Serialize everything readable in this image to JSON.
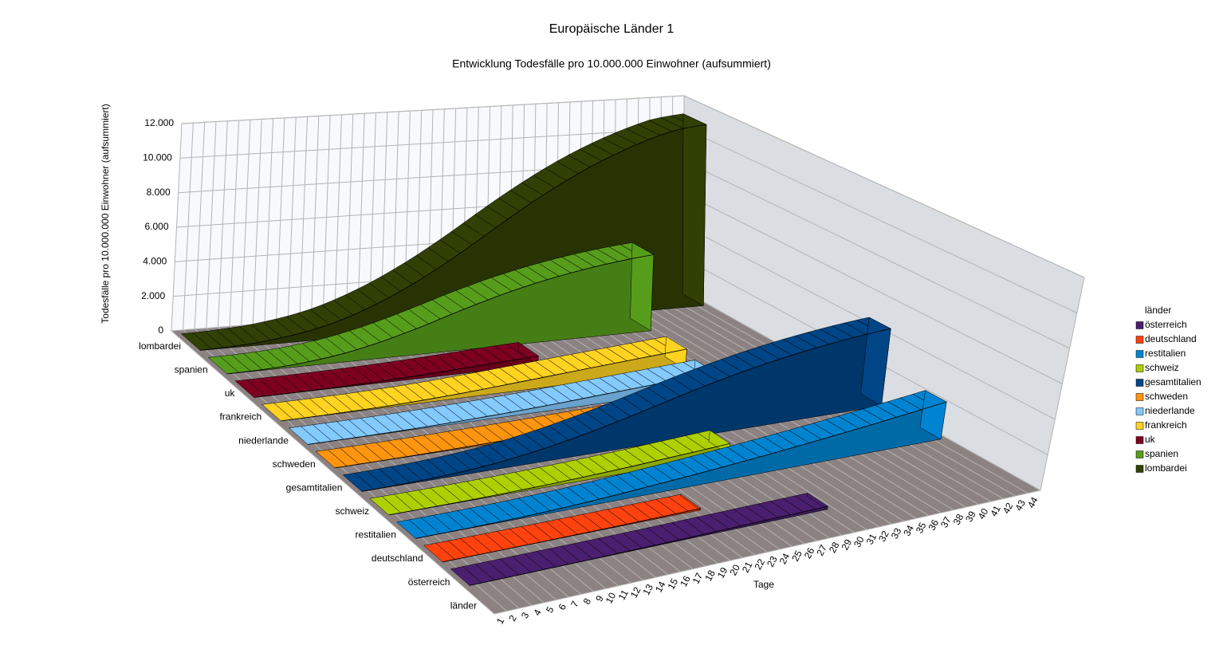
{
  "chart_data": {
    "type": "ribbon3d",
    "title": "Europäische Länder 1",
    "subtitle": "Entwicklung Todesfälle pro 10.000.000 Einwohner (aufsummiert)",
    "y_axis_label": "Todesfälle pro 10.000.000 Einwohner (aufsummiert)",
    "x_axis_label": "Tage",
    "z_axis_label": "länder",
    "legend_title": "länder",
    "legend_position": "right",
    "grid": true,
    "x": [
      1,
      2,
      3,
      4,
      5,
      6,
      7,
      8,
      9,
      10,
      11,
      12,
      13,
      14,
      15,
      16,
      17,
      18,
      19,
      20,
      21,
      22,
      23,
      24,
      25,
      26,
      27,
      28,
      29,
      30,
      31,
      32,
      33,
      34,
      35,
      36,
      37,
      38,
      39,
      40,
      41,
      42,
      43,
      44
    ],
    "xlim": [
      0.5,
      44.5
    ],
    "ylim": [
      0,
      12000
    ],
    "yticks": [
      0,
      {
        "value": 2000,
        "label": "2.000"
      },
      {
        "value": 4000,
        "label": "4.000"
      },
      {
        "value": 6000,
        "label": "6.000"
      },
      {
        "value": 8000,
        "label": "8.000"
      },
      {
        "value": 10000,
        "label": "10.000"
      },
      {
        "value": 12000,
        "label": "12.000"
      }
    ],
    "series": [
      {
        "name": "österreich",
        "color": "#4b1f6f",
        "values": [
          0,
          1,
          1,
          2,
          3,
          4,
          6,
          8,
          10,
          13,
          16,
          20,
          25,
          30,
          36,
          43,
          50,
          58,
          66,
          75,
          84,
          93,
          102,
          111,
          120,
          129,
          138,
          147,
          156,
          164,
          null,
          null,
          null,
          null,
          null,
          null,
          null,
          null,
          null,
          null,
          null,
          null,
          null,
          null
        ]
      },
      {
        "name": "deutschland",
        "color": "#ff420e",
        "values": [
          0,
          1,
          1,
          2,
          3,
          4,
          6,
          8,
          10,
          13,
          16,
          20,
          25,
          30,
          36,
          43,
          50,
          58,
          66,
          75,
          84,
          93,
          null,
          null,
          null,
          null,
          null,
          null,
          null,
          null,
          null,
          null,
          null,
          null,
          null,
          null,
          null,
          null,
          null,
          null,
          null,
          null,
          null,
          null
        ]
      },
      {
        "name": "restitalien",
        "color": "#0084d1",
        "values": [
          1,
          3,
          6,
          10,
          16,
          24,
          34,
          46,
          60,
          78,
          98,
          122,
          150,
          182,
          218,
          258,
          300,
          345,
          392,
          440,
          490,
          540,
          592,
          646,
          702,
          760,
          820,
          882,
          946,
          1012,
          1080,
          1150,
          1222,
          1296,
          1372,
          1450,
          1530,
          1612,
          1696,
          1782,
          1870,
          1960,
          2052,
          2146
        ]
      },
      {
        "name": "schweiz",
        "color": "#aecf00",
        "values": [
          1,
          2,
          4,
          7,
          11,
          16,
          22,
          30,
          40,
          52,
          66,
          82,
          100,
          120,
          142,
          166,
          192,
          220,
          250,
          282,
          316,
          352,
          390,
          430,
          470,
          510,
          550,
          590,
          630,
          null,
          null,
          null,
          null,
          null,
          null,
          null,
          null,
          null,
          null,
          null,
          null,
          null,
          null,
          null
        ]
      },
      {
        "name": "gesamtitalien",
        "color": "#004586",
        "values": [
          4,
          8,
          16,
          28,
          44,
          64,
          92,
          128,
          168,
          216,
          272,
          340,
          420,
          512,
          616,
          728,
          848,
          980,
          1120,
          1268,
          1424,
          1588,
          1760,
          1936,
          2116,
          2300,
          2480,
          2656,
          2828,
          2992,
          3152,
          3304,
          3448,
          3584,
          3712,
          3832,
          3944,
          4048,
          4144,
          4232,
          4312,
          4384,
          4448,
          4504
        ]
      },
      {
        "name": "schweden",
        "color": "#ff950e",
        "values": [
          1,
          2,
          3,
          5,
          8,
          12,
          17,
          23,
          30,
          38,
          47,
          57,
          68,
          80,
          93,
          107,
          122,
          138,
          155,
          173,
          192,
          212,
          233,
          255,
          278,
          null,
          null,
          null,
          null,
          null,
          null,
          null,
          null,
          null,
          null,
          null,
          null,
          null,
          null,
          null,
          null,
          null,
          null,
          null
        ]
      },
      {
        "name": "niederlande",
        "color": "#83caff",
        "values": [
          1,
          2,
          4,
          7,
          11,
          16,
          22,
          30,
          40,
          52,
          66,
          82,
          100,
          120,
          142,
          166,
          192,
          220,
          250,
          282,
          316,
          352,
          390,
          430,
          470,
          510,
          550,
          590,
          630,
          670,
          710,
          750,
          790,
          830,
          870,
          null,
          null,
          null,
          null,
          null,
          null,
          null,
          null,
          null
        ]
      },
      {
        "name": "frankreich",
        "color": "#ffd320",
        "values": [
          1,
          3,
          6,
          10,
          16,
          24,
          34,
          46,
          60,
          78,
          98,
          122,
          150,
          182,
          218,
          258,
          300,
          345,
          392,
          440,
          490,
          540,
          590,
          640,
          690,
          740,
          790,
          840,
          890,
          940,
          990,
          1040,
          1090,
          1140,
          1190,
          null,
          null,
          null,
          null,
          null,
          null,
          null,
          null,
          null
        ]
      },
      {
        "name": "uk",
        "color": "#7e0021",
        "values": [
          1,
          3,
          5,
          9,
          14,
          20,
          28,
          38,
          50,
          65,
          83,
          103,
          125,
          150,
          178,
          208,
          240,
          275,
          310,
          345,
          380,
          415,
          450,
          480,
          510,
          null,
          null,
          null,
          null,
          null,
          null,
          null,
          null,
          null,
          null,
          null,
          null,
          null,
          null,
          null,
          null,
          null,
          null,
          null
        ]
      },
      {
        "name": "spanien",
        "color": "#579d1c",
        "values": [
          5,
          10,
          20,
          40,
          70,
          110,
          160,
          230,
          310,
          400,
          510,
          640,
          790,
          950,
          1130,
          1320,
          1520,
          1730,
          1950,
          2170,
          2390,
          2600,
          2800,
          3000,
          3180,
          3350,
          3510,
          3660,
          3800,
          3930,
          4050,
          4160,
          4260,
          4350,
          4430,
          4500,
          4560,
          null,
          null,
          null,
          null,
          null,
          null,
          null
        ]
      },
      {
        "name": "lombardei",
        "color": "#314004",
        "values": [
          10,
          20,
          40,
          70,
          110,
          160,
          230,
          320,
          420,
          540,
          680,
          850,
          1050,
          1280,
          1540,
          1820,
          2120,
          2450,
          2800,
          3170,
          3560,
          3970,
          4400,
          4840,
          5290,
          5750,
          6200,
          6640,
          7070,
          7480,
          7880,
          8260,
          8620,
          8960,
          9280,
          9580,
          9860,
          10120,
          10360,
          10580,
          10780,
          10900,
          10980,
          11050
        ]
      }
    ]
  }
}
